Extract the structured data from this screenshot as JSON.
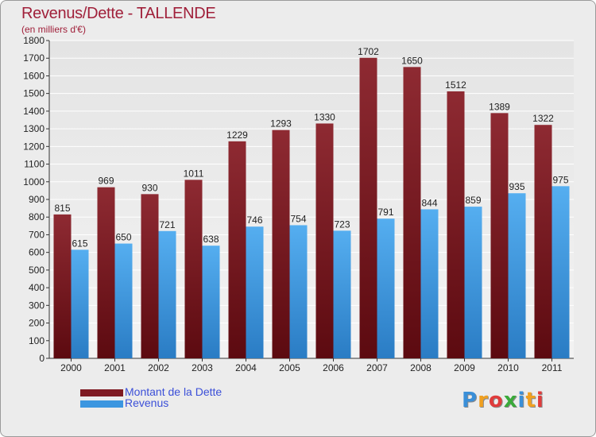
{
  "title": "Revenus/Dette - TALLENDE",
  "subtitle": "(en milliers d'€)",
  "colors": {
    "dette": "#7f1a22",
    "revenus": "#3c96e0",
    "title": "#a0203a",
    "legend_text": "#3b4fd8"
  },
  "chart_data": {
    "type": "bar",
    "categories": [
      "2000",
      "2001",
      "2002",
      "2003",
      "2004",
      "2005",
      "2006",
      "2007",
      "2008",
      "2009",
      "2010",
      "2011"
    ],
    "series": [
      {
        "name": "Montant de la Dette",
        "values": [
          815,
          969,
          930,
          1011,
          1229,
          1293,
          1330,
          1702,
          1650,
          1512,
          1389,
          1322
        ]
      },
      {
        "name": "Revenus",
        "values": [
          615,
          650,
          721,
          638,
          746,
          754,
          723,
          791,
          844,
          859,
          935,
          975
        ]
      }
    ],
    "ylim": [
      0,
      1800
    ],
    "ytick_step": 100,
    "grid": true,
    "legend_position": "bottom-left"
  },
  "legend": {
    "dette_label": "Montant de la Dette",
    "revenus_label": "Revenus"
  },
  "logo": {
    "letters": [
      "P",
      "r",
      "o",
      "x",
      "i",
      "t",
      "i"
    ],
    "colors": [
      "#3a8fd8",
      "#f0a020",
      "#e03c3c",
      "#3aaa3a",
      "#3a8fd8",
      "#f0a020",
      "#e03c3c"
    ]
  }
}
